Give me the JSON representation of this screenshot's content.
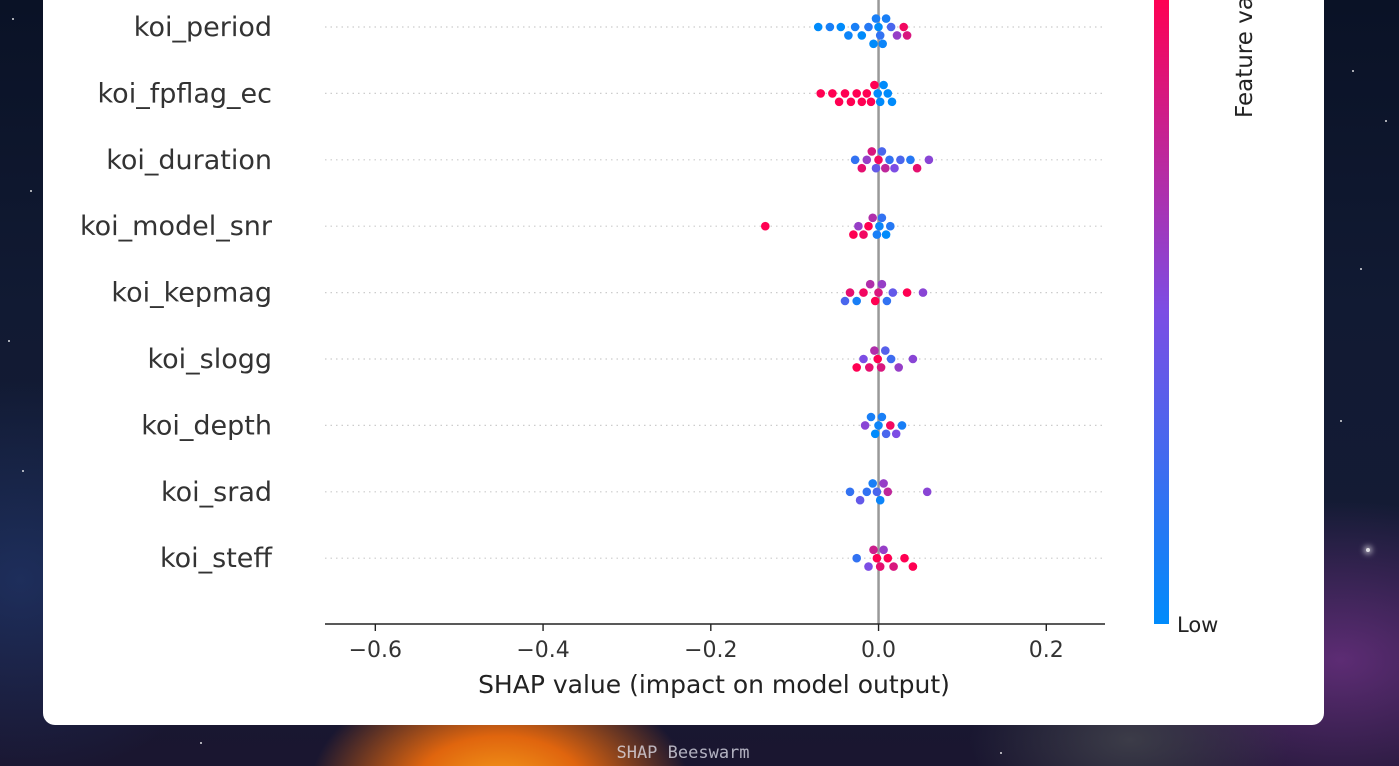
{
  "caption": "SHAP Beeswarm",
  "colorbar": {
    "low_label": "Low",
    "title": "Feature value",
    "low_color": "#008bfb",
    "high_color": "#ff0052"
  },
  "chart_data": {
    "type": "scatter",
    "title": "",
    "xlabel": "SHAP value (impact on model output)",
    "ylabel": "",
    "xlim": [
      -0.66,
      0.27
    ],
    "xticks": [
      -0.6,
      -0.4,
      -0.2,
      0.0,
      0.2
    ],
    "xtick_labels": [
      "−0.6",
      "−0.4",
      "−0.2",
      "0.0",
      "0.2"
    ],
    "features": [
      "koi_period",
      "koi_fpflag_ec",
      "koi_duration",
      "koi_model_snr",
      "koi_kepmag",
      "koi_slogg",
      "koi_depth",
      "koi_srad",
      "koi_steff"
    ],
    "series": [
      {
        "feature": "koi_period",
        "points": [
          {
            "x": -0.072,
            "c": 0.0
          },
          {
            "x": -0.058,
            "c": 0.1
          },
          {
            "x": -0.045,
            "c": 0.0
          },
          {
            "x": -0.036,
            "c": 0.05
          },
          {
            "x": -0.028,
            "c": 0.1
          },
          {
            "x": -0.02,
            "c": 0.0
          },
          {
            "x": -0.012,
            "c": 0.15
          },
          {
            "x": -0.006,
            "c": 0.0
          },
          {
            "x": -0.003,
            "c": 0.1
          },
          {
            "x": 0.0,
            "c": 0.0
          },
          {
            "x": 0.002,
            "c": 0.2
          },
          {
            "x": 0.005,
            "c": 0.05
          },
          {
            "x": 0.009,
            "c": 0.1
          },
          {
            "x": 0.015,
            "c": 0.3
          },
          {
            "x": 0.022,
            "c": 0.6
          },
          {
            "x": 0.03,
            "c": 0.95
          },
          {
            "x": 0.034,
            "c": 0.85
          }
        ]
      },
      {
        "feature": "koi_fpflag_ec",
        "points": [
          {
            "x": -0.069,
            "c": 1.0
          },
          {
            "x": -0.055,
            "c": 1.0
          },
          {
            "x": -0.047,
            "c": 1.0
          },
          {
            "x": -0.04,
            "c": 1.0
          },
          {
            "x": -0.033,
            "c": 1.0
          },
          {
            "x": -0.026,
            "c": 1.0
          },
          {
            "x": -0.02,
            "c": 1.0
          },
          {
            "x": -0.014,
            "c": 1.0
          },
          {
            "x": -0.009,
            "c": 1.0
          },
          {
            "x": -0.005,
            "c": 1.0
          },
          {
            "x": -0.001,
            "c": 0.0
          },
          {
            "x": 0.002,
            "c": 0.0
          },
          {
            "x": 0.006,
            "c": 0.0
          },
          {
            "x": 0.011,
            "c": 0.0
          },
          {
            "x": 0.016,
            "c": 0.0
          }
        ]
      },
      {
        "feature": "koi_duration",
        "points": [
          {
            "x": -0.028,
            "c": 0.2
          },
          {
            "x": -0.02,
            "c": 0.9
          },
          {
            "x": -0.014,
            "c": 0.6
          },
          {
            "x": -0.008,
            "c": 0.85
          },
          {
            "x": -0.003,
            "c": 0.4
          },
          {
            "x": 0.0,
            "c": 0.95
          },
          {
            "x": 0.004,
            "c": 0.3
          },
          {
            "x": 0.008,
            "c": 0.75
          },
          {
            "x": 0.013,
            "c": 0.2
          },
          {
            "x": 0.019,
            "c": 0.5
          },
          {
            "x": 0.026,
            "c": 0.3
          },
          {
            "x": 0.038,
            "c": 0.15
          },
          {
            "x": 0.046,
            "c": 0.9
          },
          {
            "x": 0.06,
            "c": 0.55
          }
        ]
      },
      {
        "feature": "koi_model_snr",
        "points": [
          {
            "x": -0.135,
            "c": 1.0
          },
          {
            "x": -0.03,
            "c": 1.0
          },
          {
            "x": -0.024,
            "c": 0.6
          },
          {
            "x": -0.018,
            "c": 0.95
          },
          {
            "x": -0.012,
            "c": 1.0
          },
          {
            "x": -0.007,
            "c": 0.7
          },
          {
            "x": -0.002,
            "c": 0.1
          },
          {
            "x": 0.001,
            "c": 0.05
          },
          {
            "x": 0.004,
            "c": 0.2
          },
          {
            "x": 0.009,
            "c": 0.0
          },
          {
            "x": 0.014,
            "c": 0.15
          }
        ]
      },
      {
        "feature": "koi_kepmag",
        "points": [
          {
            "x": -0.04,
            "c": 0.3
          },
          {
            "x": -0.034,
            "c": 0.9
          },
          {
            "x": -0.026,
            "c": 0.1
          },
          {
            "x": -0.018,
            "c": 0.95
          },
          {
            "x": -0.01,
            "c": 0.7
          },
          {
            "x": -0.004,
            "c": 1.0
          },
          {
            "x": 0.0,
            "c": 0.85
          },
          {
            "x": 0.004,
            "c": 0.6
          },
          {
            "x": 0.01,
            "c": 0.2
          },
          {
            "x": 0.017,
            "c": 0.4
          },
          {
            "x": 0.034,
            "c": 1.0
          },
          {
            "x": 0.053,
            "c": 0.55
          }
        ]
      },
      {
        "feature": "koi_slogg",
        "points": [
          {
            "x": -0.026,
            "c": 1.0
          },
          {
            "x": -0.018,
            "c": 0.5
          },
          {
            "x": -0.011,
            "c": 0.9
          },
          {
            "x": -0.005,
            "c": 0.7
          },
          {
            "x": -0.001,
            "c": 1.0
          },
          {
            "x": 0.003,
            "c": 0.85
          },
          {
            "x": 0.008,
            "c": 0.35
          },
          {
            "x": 0.015,
            "c": 0.25
          },
          {
            "x": 0.024,
            "c": 0.6
          },
          {
            "x": 0.041,
            "c": 0.55
          }
        ]
      },
      {
        "feature": "koi_depth",
        "points": [
          {
            "x": -0.016,
            "c": 0.55
          },
          {
            "x": -0.009,
            "c": 0.1
          },
          {
            "x": -0.004,
            "c": 0.0
          },
          {
            "x": 0.0,
            "c": 0.05
          },
          {
            "x": 0.004,
            "c": 0.1
          },
          {
            "x": 0.009,
            "c": 0.3
          },
          {
            "x": 0.014,
            "c": 0.95
          },
          {
            "x": 0.021,
            "c": 0.5
          },
          {
            "x": 0.028,
            "c": 0.1
          }
        ]
      },
      {
        "feature": "koi_srad",
        "points": [
          {
            "x": -0.034,
            "c": 0.2
          },
          {
            "x": -0.022,
            "c": 0.4
          },
          {
            "x": -0.014,
            "c": 0.2
          },
          {
            "x": -0.007,
            "c": 0.1
          },
          {
            "x": -0.002,
            "c": 0.3
          },
          {
            "x": 0.002,
            "c": 0.05
          },
          {
            "x": 0.006,
            "c": 0.6
          },
          {
            "x": 0.011,
            "c": 0.75
          },
          {
            "x": 0.058,
            "c": 0.55
          }
        ]
      },
      {
        "feature": "koi_steff",
        "points": [
          {
            "x": -0.026,
            "c": 0.2
          },
          {
            "x": -0.012,
            "c": 0.5
          },
          {
            "x": -0.006,
            "c": 0.8
          },
          {
            "x": -0.002,
            "c": 1.0
          },
          {
            "x": 0.002,
            "c": 0.9
          },
          {
            "x": 0.006,
            "c": 0.6
          },
          {
            "x": 0.011,
            "c": 1.0
          },
          {
            "x": 0.018,
            "c": 0.85
          },
          {
            "x": 0.031,
            "c": 1.0
          },
          {
            "x": 0.041,
            "c": 1.0
          }
        ]
      }
    ]
  }
}
